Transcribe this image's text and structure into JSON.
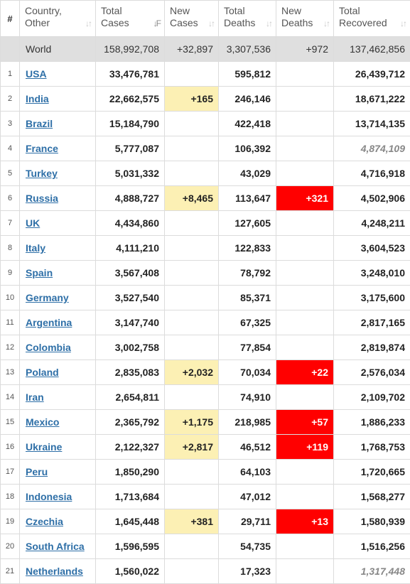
{
  "headers": {
    "num": "#",
    "country": [
      "Country,",
      "Other"
    ],
    "total_cases": [
      "Total",
      "Cases"
    ],
    "new_cases": [
      "New",
      "Cases"
    ],
    "total_deaths": [
      "Total",
      "Deaths"
    ],
    "new_deaths": [
      "New",
      "Deaths"
    ],
    "total_recovered": [
      "Total",
      "Recovered"
    ]
  },
  "icons": {
    "sort": "sort-arrows-icon",
    "sort_active": "sort-descending-icon"
  },
  "colors": {
    "new_cases_highlight": "#fcf0b4",
    "new_deaths_highlight": "#ff0000",
    "link": "#2e6fa7",
    "world_row": "#dfdfdf"
  },
  "world": {
    "country": "World",
    "total_cases": "158,992,708",
    "new_cases": "+32,897",
    "total_deaths": "3,307,536",
    "new_deaths": "+972",
    "total_recovered": "137,462,856"
  },
  "rows": [
    {
      "num": "1",
      "country": "USA",
      "total_cases": "33,476,781",
      "new_cases": "",
      "total_deaths": "595,812",
      "new_deaths": "",
      "total_recovered": "26,439,712"
    },
    {
      "num": "2",
      "country": "India",
      "total_cases": "22,662,575",
      "new_cases": "+165",
      "total_deaths": "246,146",
      "new_deaths": "",
      "total_recovered": "18,671,222"
    },
    {
      "num": "3",
      "country": "Brazil",
      "total_cases": "15,184,790",
      "new_cases": "",
      "total_deaths": "422,418",
      "new_deaths": "",
      "total_recovered": "13,714,135"
    },
    {
      "num": "4",
      "country": "France",
      "total_cases": "5,777,087",
      "new_cases": "",
      "total_deaths": "106,392",
      "new_deaths": "",
      "total_recovered": "4,874,109",
      "recovered_estimated": true
    },
    {
      "num": "5",
      "country": "Turkey",
      "total_cases": "5,031,332",
      "new_cases": "",
      "total_deaths": "43,029",
      "new_deaths": "",
      "total_recovered": "4,716,918"
    },
    {
      "num": "6",
      "country": "Russia",
      "total_cases": "4,888,727",
      "new_cases": "+8,465",
      "total_deaths": "113,647",
      "new_deaths": "+321",
      "total_recovered": "4,502,906"
    },
    {
      "num": "7",
      "country": "UK",
      "total_cases": "4,434,860",
      "new_cases": "",
      "total_deaths": "127,605",
      "new_deaths": "",
      "total_recovered": "4,248,211"
    },
    {
      "num": "8",
      "country": "Italy",
      "total_cases": "4,111,210",
      "new_cases": "",
      "total_deaths": "122,833",
      "new_deaths": "",
      "total_recovered": "3,604,523"
    },
    {
      "num": "9",
      "country": "Spain",
      "total_cases": "3,567,408",
      "new_cases": "",
      "total_deaths": "78,792",
      "new_deaths": "",
      "total_recovered": "3,248,010"
    },
    {
      "num": "10",
      "country": "Germany",
      "total_cases": "3,527,540",
      "new_cases": "",
      "total_deaths": "85,371",
      "new_deaths": "",
      "total_recovered": "3,175,600"
    },
    {
      "num": "11",
      "country": "Argentina",
      "total_cases": "3,147,740",
      "new_cases": "",
      "total_deaths": "67,325",
      "new_deaths": "",
      "total_recovered": "2,817,165"
    },
    {
      "num": "12",
      "country": "Colombia",
      "total_cases": "3,002,758",
      "new_cases": "",
      "total_deaths": "77,854",
      "new_deaths": "",
      "total_recovered": "2,819,874"
    },
    {
      "num": "13",
      "country": "Poland",
      "total_cases": "2,835,083",
      "new_cases": "+2,032",
      "total_deaths": "70,034",
      "new_deaths": "+22",
      "total_recovered": "2,576,034"
    },
    {
      "num": "14",
      "country": "Iran",
      "total_cases": "2,654,811",
      "new_cases": "",
      "total_deaths": "74,910",
      "new_deaths": "",
      "total_recovered": "2,109,702"
    },
    {
      "num": "15",
      "country": "Mexico",
      "total_cases": "2,365,792",
      "new_cases": "+1,175",
      "total_deaths": "218,985",
      "new_deaths": "+57",
      "total_recovered": "1,886,233"
    },
    {
      "num": "16",
      "country": "Ukraine",
      "total_cases": "2,122,327",
      "new_cases": "+2,817",
      "total_deaths": "46,512",
      "new_deaths": "+119",
      "total_recovered": "1,768,753"
    },
    {
      "num": "17",
      "country": "Peru",
      "total_cases": "1,850,290",
      "new_cases": "",
      "total_deaths": "64,103",
      "new_deaths": "",
      "total_recovered": "1,720,665"
    },
    {
      "num": "18",
      "country": "Indonesia",
      "total_cases": "1,713,684",
      "new_cases": "",
      "total_deaths": "47,012",
      "new_deaths": "",
      "total_recovered": "1,568,277"
    },
    {
      "num": "19",
      "country": "Czechia",
      "total_cases": "1,645,448",
      "new_cases": "+381",
      "total_deaths": "29,711",
      "new_deaths": "+13",
      "total_recovered": "1,580,939"
    },
    {
      "num": "20",
      "country": "South Africa",
      "total_cases": "1,596,595",
      "new_cases": "",
      "total_deaths": "54,735",
      "new_deaths": "",
      "total_recovered": "1,516,256"
    },
    {
      "num": "21",
      "country": "Netherlands",
      "total_cases": "1,560,022",
      "new_cases": "",
      "total_deaths": "17,323",
      "new_deaths": "",
      "total_recovered": "1,317,448",
      "recovered_estimated": true
    }
  ]
}
